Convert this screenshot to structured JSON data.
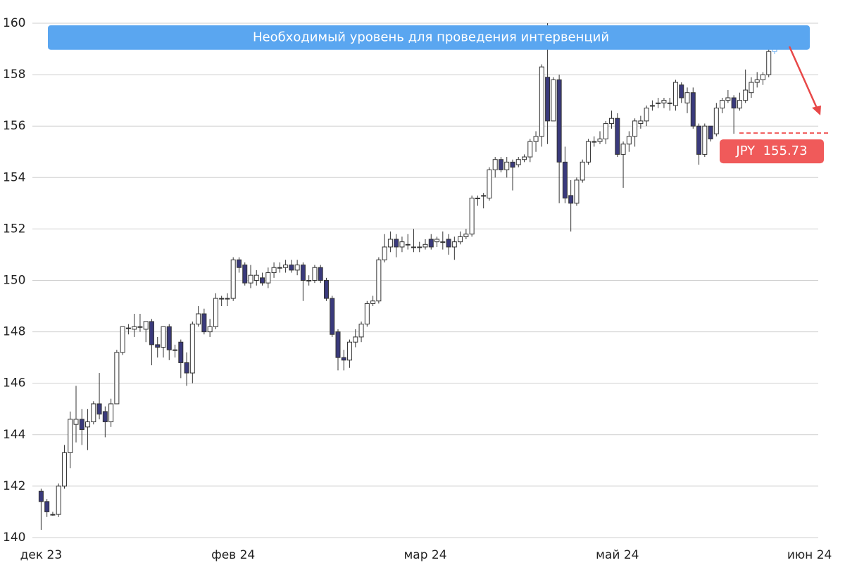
{
  "chart_data": {
    "type": "candlestick",
    "open": [
      141.8,
      141.4,
      140.9,
      140.9,
      142.0,
      143.3,
      144.4,
      144.6,
      144.3,
      144.5,
      145.2,
      144.9,
      144.5,
      145.2,
      147.2,
      148.15,
      148.1,
      148.2,
      148.1,
      148.4,
      147.5,
      147.4,
      148.2,
      147.3,
      147.6,
      146.8,
      146.4,
      148.3,
      148.7,
      148.0,
      148.2,
      149.3,
      149.3,
      149.3,
      150.8,
      150.6,
      149.9,
      150.0,
      150.1,
      149.9,
      150.3,
      150.5,
      150.5,
      150.6,
      150.4,
      150.6,
      150.0,
      150.0,
      150.5,
      150.0,
      149.3,
      148.0,
      147.0,
      146.9,
      147.6,
      147.8,
      148.3,
      149.1,
      149.2,
      150.8,
      151.3,
      151.6,
      151.3,
      151.4,
      151.3,
      151.3,
      151.3,
      151.6,
      151.5,
      151.5,
      151.6,
      151.3,
      151.5,
      151.7,
      151.8,
      153.2,
      153.3,
      153.2,
      154.3,
      154.7,
      154.3,
      154.6,
      154.5,
      154.7,
      154.8,
      155.4,
      155.6,
      157.9,
      156.2,
      157.8,
      154.6,
      153.3,
      153.0,
      153.9,
      154.6,
      155.4,
      155.4,
      155.5,
      156.1,
      156.3,
      154.9,
      155.3,
      155.6,
      156.1,
      156.2,
      156.8,
      156.9,
      156.9,
      156.9,
      156.8,
      157.6,
      156.9,
      157.3,
      156.0,
      154.9,
      156.0,
      155.7,
      156.7,
      157.0,
      157.1,
      156.7,
      157.0,
      157.3,
      157.7,
      157.8,
      158.0,
      158.9
    ],
    "high": [
      141.9,
      141.5,
      141.0,
      142.1,
      143.6,
      144.9,
      145.9,
      145.0,
      145.0,
      145.3,
      146.4,
      145.1,
      145.4,
      147.3,
      148.2,
      148.3,
      148.7,
      148.7,
      148.4,
      148.5,
      147.8,
      148.2,
      148.3,
      147.5,
      147.7,
      147.2,
      148.4,
      149.0,
      148.9,
      148.5,
      149.5,
      149.4,
      149.5,
      150.9,
      150.9,
      150.7,
      150.6,
      150.4,
      150.3,
      150.5,
      150.7,
      150.7,
      150.8,
      150.8,
      150.8,
      150.7,
      150.2,
      150.6,
      150.6,
      150.1,
      149.4,
      148.1,
      147.3,
      147.7,
      148.1,
      148.4,
      149.2,
      149.4,
      150.9,
      151.8,
      151.9,
      151.8,
      151.7,
      151.8,
      152.0,
      151.5,
      151.6,
      151.8,
      151.7,
      151.9,
      151.8,
      151.7,
      151.9,
      152.0,
      153.3,
      153.3,
      153.4,
      154.4,
      154.8,
      154.8,
      154.8,
      154.7,
      154.8,
      154.9,
      155.5,
      155.8,
      158.4,
      160.0,
      157.9,
      158.0,
      155.2,
      153.9,
      154.0,
      154.7,
      155.5,
      155.6,
      155.8,
      156.2,
      156.6,
      156.5,
      155.4,
      155.8,
      156.3,
      156.4,
      156.8,
      157.0,
      157.1,
      157.1,
      157.1,
      157.8,
      157.7,
      157.5,
      157.5,
      156.1,
      156.1,
      156.0,
      156.9,
      157.1,
      157.4,
      157.2,
      157.3,
      158.2,
      157.9,
      158.1,
      158.1,
      159.0,
      159.3
    ],
    "low": [
      140.3,
      140.8,
      140.85,
      140.8,
      141.9,
      142.7,
      143.7,
      143.6,
      143.4,
      144.4,
      144.6,
      143.9,
      144.3,
      145.2,
      147.1,
      147.9,
      147.8,
      148.0,
      147.6,
      146.7,
      147.0,
      147.0,
      146.9,
      147.0,
      146.2,
      145.9,
      146.0,
      148.2,
      147.9,
      147.8,
      148.1,
      149.0,
      149.0,
      149.2,
      150.3,
      149.8,
      149.7,
      149.8,
      149.8,
      149.7,
      150.1,
      150.3,
      150.3,
      150.3,
      150.2,
      149.2,
      149.8,
      149.9,
      149.9,
      149.2,
      147.8,
      146.5,
      146.5,
      146.6,
      147.4,
      147.6,
      148.2,
      149.0,
      149.1,
      150.7,
      151.1,
      150.9,
      151.1,
      151.2,
      151.1,
      151.1,
      151.2,
      151.2,
      151.3,
      151.2,
      151.0,
      150.8,
      151.4,
      151.6,
      151.7,
      152.9,
      152.8,
      153.1,
      154.0,
      154.2,
      154.0,
      153.5,
      154.4,
      154.6,
      154.6,
      155.0,
      155.2,
      155.3,
      156.2,
      153.0,
      153.0,
      151.9,
      152.9,
      153.8,
      154.5,
      155.2,
      155.3,
      155.3,
      155.9,
      154.8,
      153.6,
      155.0,
      155.2,
      155.9,
      156.0,
      156.6,
      156.7,
      156.7,
      156.6,
      156.6,
      156.9,
      156.5,
      155.9,
      154.5,
      154.8,
      155.4,
      155.6,
      156.5,
      156.9,
      155.7,
      156.6,
      156.9,
      157.1,
      157.5,
      157.6,
      157.9,
      158.8
    ],
    "close": [
      141.4,
      141.0,
      140.9,
      142.0,
      143.3,
      144.6,
      144.6,
      144.2,
      144.5,
      145.2,
      144.8,
      144.5,
      145.2,
      147.2,
      148.2,
      148.15,
      148.2,
      148.2,
      148.4,
      147.5,
      147.4,
      148.2,
      147.3,
      147.3,
      146.8,
      146.4,
      148.3,
      148.7,
      148.0,
      148.2,
      149.3,
      149.3,
      149.3,
      150.8,
      150.5,
      149.9,
      150.2,
      150.2,
      149.9,
      150.3,
      150.5,
      150.5,
      150.6,
      150.4,
      150.6,
      150.0,
      150.0,
      150.5,
      150.0,
      149.3,
      147.9,
      147.0,
      146.9,
      147.6,
      147.8,
      148.3,
      149.1,
      149.2,
      150.8,
      151.3,
      151.6,
      151.3,
      151.5,
      151.4,
      151.3,
      151.3,
      151.4,
      151.3,
      151.6,
      151.5,
      151.3,
      151.5,
      151.7,
      151.8,
      153.2,
      153.2,
      153.3,
      154.3,
      154.7,
      154.3,
      154.6,
      154.4,
      154.7,
      154.8,
      155.4,
      155.6,
      158.3,
      156.2,
      157.8,
      154.6,
      153.2,
      153.0,
      153.9,
      154.6,
      155.4,
      155.4,
      155.5,
      156.1,
      156.3,
      154.9,
      155.3,
      155.6,
      156.2,
      156.2,
      156.7,
      156.8,
      156.9,
      157.0,
      156.9,
      157.7,
      157.1,
      157.3,
      156.0,
      154.9,
      156.0,
      155.5,
      156.7,
      157.0,
      157.1,
      156.7,
      157.0,
      157.4,
      157.7,
      157.8,
      158.0,
      158.9,
      159.2
    ],
    "up_color": "#ffffff",
    "down_color": "#3a3a7c",
    "last_color": "#6aaef0",
    "xlim": [
      -1.5,
      133.5
    ],
    "xticks": [
      {
        "value": 0,
        "label": "дек 23"
      },
      {
        "value": 33,
        "label": "фев 24"
      },
      {
        "value": 66,
        "label": "мар 24"
      },
      {
        "value": 99,
        "label": "май 24"
      },
      {
        "value": 132,
        "label": "июн 24"
      }
    ],
    "ylim": [
      140,
      160
    ],
    "yticks": [
      140,
      142,
      144,
      146,
      148,
      150,
      152,
      154,
      156,
      158,
      160
    ],
    "grid": true,
    "band": {
      "label": "Необходимый уровень для проведения интервенций",
      "from": 159.05,
      "to": 160,
      "color": "#5aa6f0"
    },
    "price_line": {
      "value": 155.73,
      "label": "JPY  155.73",
      "color": "#f05a5a"
    }
  }
}
